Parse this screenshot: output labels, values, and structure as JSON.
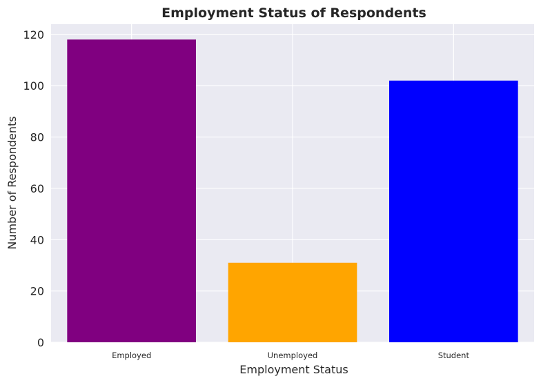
{
  "chart_data": {
    "type": "bar",
    "title": "Employment Status of Respondents",
    "xlabel": "Employment Status",
    "ylabel": "Number of Respondents",
    "categories": [
      "Employed",
      "Unemployed",
      "Student"
    ],
    "values": [
      118,
      31,
      102
    ],
    "colors": [
      "#800080",
      "#FFA500",
      "#0000FF"
    ],
    "ylim": [
      0,
      124
    ],
    "yticks": [
      0,
      20,
      40,
      60,
      80,
      100,
      120
    ],
    "grid": true,
    "background": "#EAEAF2",
    "grid_color": "#FFFFFF"
  }
}
